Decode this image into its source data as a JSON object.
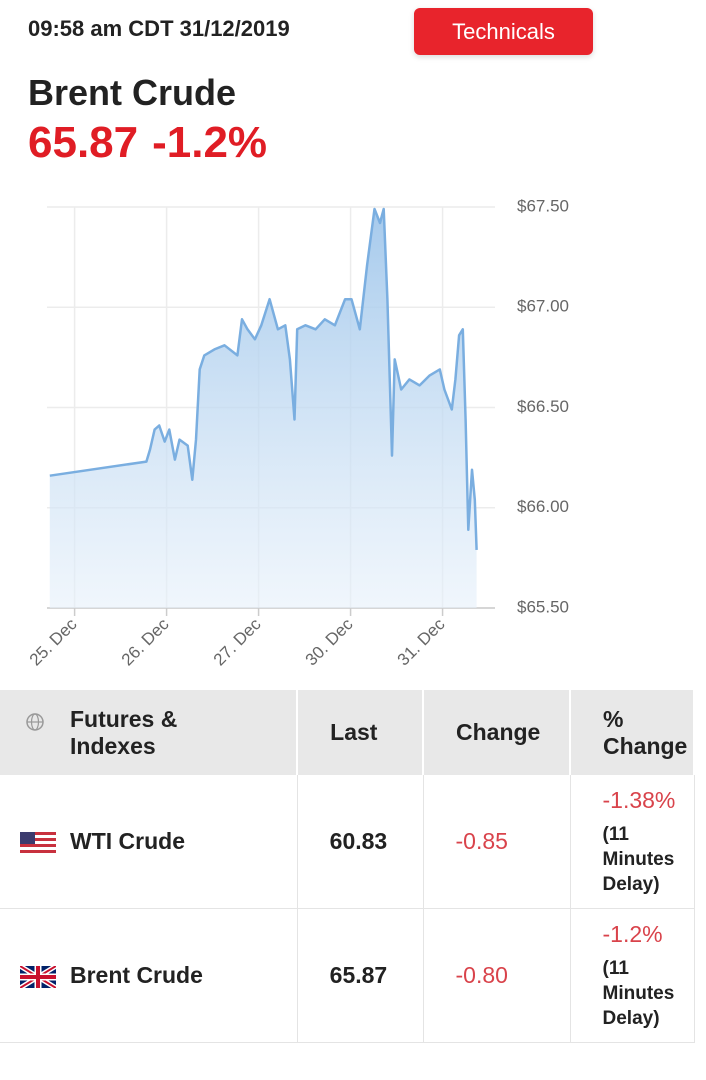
{
  "header": {
    "timestamp": "09:58 am CDT 31/12/2019",
    "button": "Technicals",
    "instrument": "Brent Crude",
    "price": "65.87",
    "change": "-1.2%"
  },
  "chart_data": {
    "type": "area",
    "x": [
      -0.27,
      0.78,
      0.82,
      0.87,
      0.92,
      0.98,
      1.03,
      1.09,
      1.14,
      1.23,
      1.28,
      1.32,
      1.36,
      1.41,
      1.52,
      1.63,
      1.77,
      1.82,
      1.88,
      1.96,
      2.03,
      2.12,
      2.21,
      2.29,
      2.34,
      2.39,
      2.42,
      2.51,
      2.62,
      2.72,
      2.83,
      2.94,
      3.01,
      3.1,
      3.18,
      3.26,
      3.32,
      3.36,
      3.4,
      3.45,
      3.48,
      3.55,
      3.64,
      3.75,
      3.86,
      3.97,
      4.02,
      4.1,
      4.14,
      4.18,
      4.22,
      4.25,
      4.28,
      4.32,
      4.35,
      4.37
    ],
    "values": [
      66.16,
      66.23,
      66.29,
      66.39,
      66.41,
      66.33,
      66.39,
      66.24,
      66.34,
      66.31,
      66.14,
      66.34,
      66.69,
      66.76,
      66.79,
      66.81,
      66.76,
      66.94,
      66.89,
      66.84,
      66.91,
      67.04,
      66.89,
      66.91,
      66.74,
      66.44,
      66.89,
      66.91,
      66.89,
      66.94,
      66.91,
      67.04,
      67.04,
      66.89,
      67.21,
      67.49,
      67.42,
      67.49,
      67.04,
      66.26,
      66.74,
      66.59,
      66.64,
      66.61,
      66.66,
      66.69,
      66.59,
      66.49,
      66.64,
      66.86,
      66.89,
      66.44,
      65.89,
      66.19,
      66.04,
      65.79
    ],
    "color": "#7aaee0",
    "xlim": [
      -0.3,
      4.57
    ],
    "xticks": [
      {
        "value": 0,
        "label": "25. Dec"
      },
      {
        "value": 1,
        "label": "26. Dec"
      },
      {
        "value": 2,
        "label": "27. Dec"
      },
      {
        "value": 3,
        "label": "30. Dec"
      },
      {
        "value": 4,
        "label": "31. Dec"
      }
    ],
    "ylim": [
      65.5,
      67.5
    ],
    "yticks": [
      {
        "value": 65.5,
        "label": "$65.50"
      },
      {
        "value": 66,
        "label": "$66.00"
      },
      {
        "value": 66.5,
        "label": "$66.50"
      },
      {
        "value": 67,
        "label": "$67.00"
      },
      {
        "value": 67.5,
        "label": "$67.50"
      }
    ],
    "grid": true
  },
  "table": {
    "header": [
      "Futures & Indexes",
      "Last",
      "Change",
      "% Change"
    ],
    "rows": [
      [
        "WTI Crude",
        "60.83",
        "-0.85",
        "-1.38%",
        "(11 Minutes Delay)"
      ],
      [
        "Brent Crude",
        "65.87",
        "-0.80",
        "-1.2%",
        "(11 Minutes Delay)"
      ]
    ]
  }
}
